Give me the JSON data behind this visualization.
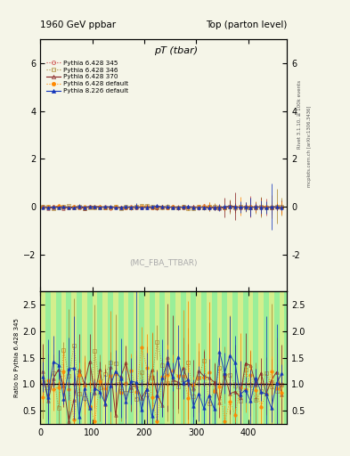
{
  "title_left": "1960 GeV ppbar",
  "title_right": "Top (parton level)",
  "plot_title": "pT (tbar)",
  "watermark": "(MC_FBA_TTBAR)",
  "right_label_top": "Rivet 3.1.10, ≥ 100k events",
  "right_label_bot": "mcplots.cern.ch [arXiv:1306.3436]",
  "y_label_ratio": "Ratio to Pythia 6.428 345",
  "xlim": [
    0,
    475
  ],
  "ylim_main": [
    -3.5,
    7
  ],
  "ylim_ratio": [
    0.25,
    2.75
  ],
  "ratio_yticks": [
    0.5,
    1.0,
    1.5,
    2.0,
    2.5
  ],
  "main_yticks": [
    -2,
    0,
    2,
    4,
    6
  ],
  "series": [
    {
      "label": "Pythia 6.428 345",
      "color": "#cc4444",
      "marker": "o",
      "linestyle": ":",
      "filled": false
    },
    {
      "label": "Pythia 6.428 346",
      "color": "#aa8833",
      "marker": "s",
      "linestyle": ":",
      "filled": false
    },
    {
      "label": "Pythia 6.428 370",
      "color": "#882222",
      "marker": "^",
      "linestyle": "-",
      "filled": false
    },
    {
      "label": "Pythia 6.428 default",
      "color": "#ff8800",
      "marker": "o",
      "linestyle": ":",
      "filled": true
    },
    {
      "label": "Pythia 8.226 default",
      "color": "#1133bb",
      "marker": "^",
      "linestyle": "-",
      "filled": true
    }
  ],
  "bg_color_main": "#f5f5e8",
  "bg_color_ratio_green": "#99ee99",
  "bg_color_ratio_yellow": "#eeee88"
}
